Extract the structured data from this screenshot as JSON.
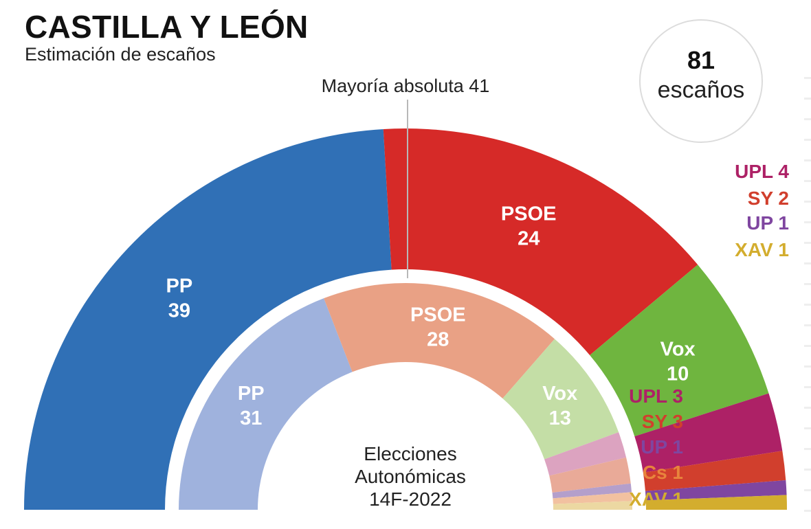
{
  "header": {
    "title": "CASTILLA Y LEÓN",
    "subtitle": "Estimación de escaños"
  },
  "majority": {
    "label": "Mayoría absoluta 41"
  },
  "total": {
    "number": "81",
    "label": "escaños"
  },
  "inner_caption": [
    "Elecciones",
    "Autonómicas",
    "14F-2022"
  ],
  "chart_data": [
    {
      "type": "pie",
      "subtype": "parliament-semicircle",
      "name": "Estimación de escaños",
      "total_seats": 81,
      "categories": [
        "PP",
        "PSOE",
        "Vox",
        "UPL",
        "SY",
        "UP",
        "XAV"
      ],
      "values": [
        39,
        24,
        10,
        4,
        2,
        1,
        1
      ],
      "labels": [
        "PP\n39",
        "PSOE\n24",
        "Vox\n10",
        "UPL 4",
        "SY 2",
        "UP 1",
        "XAV 1"
      ],
      "colors": [
        "#3070b6",
        "#d62a28",
        "#6fb53f",
        "#ad2166",
        "#d13f2d",
        "#7f46a0",
        "#d3ad2e"
      ],
      "label_colors": [
        "#ffffff",
        "#ffffff",
        "#ffffff",
        "#ad2166",
        "#d13f2d",
        "#7f46a0",
        "#d3ad2e"
      ]
    },
    {
      "type": "pie",
      "subtype": "parliament-semicircle",
      "name": "Elecciones Autonómicas 14F-2022",
      "total_seats": 81,
      "categories": [
        "PP",
        "PSOE",
        "Vox",
        "UPL",
        "SY",
        "UP",
        "Cs",
        "XAV"
      ],
      "values": [
        31,
        28,
        13,
        3,
        3,
        1,
        1,
        1
      ],
      "labels": [
        "PP\n31",
        "PSOE\n28",
        "Vox\n13",
        "UPL 3",
        "SY 3",
        "UP 1",
        "Cs 1",
        "XAV 1"
      ],
      "colors": [
        "#9fb2dd",
        "#e9a185",
        "#c4dea6",
        "#dca3c0",
        "#e9aa98",
        "#b49fcb",
        "#f2c1a0",
        "#ecd8a2"
      ],
      "label_colors": [
        "#ffffff",
        "#ffffff",
        "#ffffff",
        "#ad2166",
        "#d13f2d",
        "#7f46a0",
        "#e8843c",
        "#d3ad2e"
      ]
    }
  ]
}
